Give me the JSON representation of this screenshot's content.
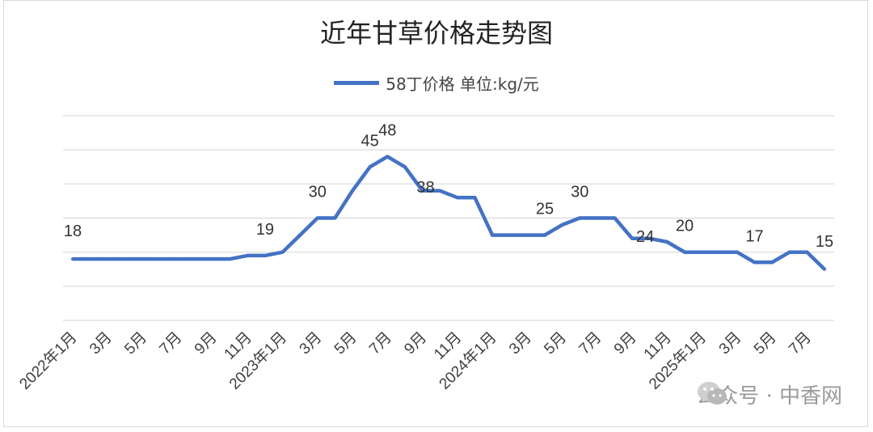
{
  "title": "近年甘草价格走势图",
  "watermark": "公众号 · 中香网",
  "colors": {
    "series": "#4472c4",
    "grid": "#d9d9d9",
    "text": "#404040"
  },
  "chart_data": {
    "type": "line",
    "title": "近年甘草价格走势图",
    "series": [
      {
        "name": "58丁价格 单位:kg/元",
        "values": [
          18,
          18,
          18,
          18,
          18,
          18,
          18,
          18,
          18,
          18,
          19,
          19,
          20,
          25,
          30,
          30,
          38,
          45,
          48,
          45,
          38,
          38,
          36,
          36,
          25,
          25,
          25,
          25,
          28,
          30,
          30,
          30,
          24,
          24,
          23,
          20,
          20,
          20,
          20,
          17,
          17,
          20,
          20,
          15
        ]
      }
    ],
    "categories": [
      "2022年1月",
      "",
      "3月",
      "",
      "5月",
      "",
      "7月",
      "",
      "9月",
      "",
      "11月",
      "",
      "2023年1月",
      "",
      "3月",
      "",
      "5月",
      "",
      "7月",
      "",
      "9月",
      "",
      "11月",
      "",
      "2024年1月",
      "",
      "3月",
      "",
      "5月",
      "",
      "7月",
      "",
      "9月",
      "",
      "11月",
      "",
      "2025年1月",
      "",
      "3月",
      "",
      "5月",
      "",
      "7月",
      ""
    ],
    "data_labels": [
      {
        "index": 0,
        "text": "18"
      },
      {
        "index": 11,
        "text": "19"
      },
      {
        "index": 14,
        "text": "30"
      },
      {
        "index": 17,
        "text": "45"
      },
      {
        "index": 18,
        "text": "48"
      },
      {
        "index": 20,
        "text": "38"
      },
      {
        "index": 27,
        "text": "25"
      },
      {
        "index": 29,
        "text": "30"
      },
      {
        "index": 32,
        "text": "24"
      },
      {
        "index": 35,
        "text": "20"
      },
      {
        "index": 39,
        "text": "17"
      },
      {
        "index": 43,
        "text": "15"
      }
    ],
    "ylim": [
      0,
      60
    ],
    "grid": true,
    "legend": "top-center"
  }
}
